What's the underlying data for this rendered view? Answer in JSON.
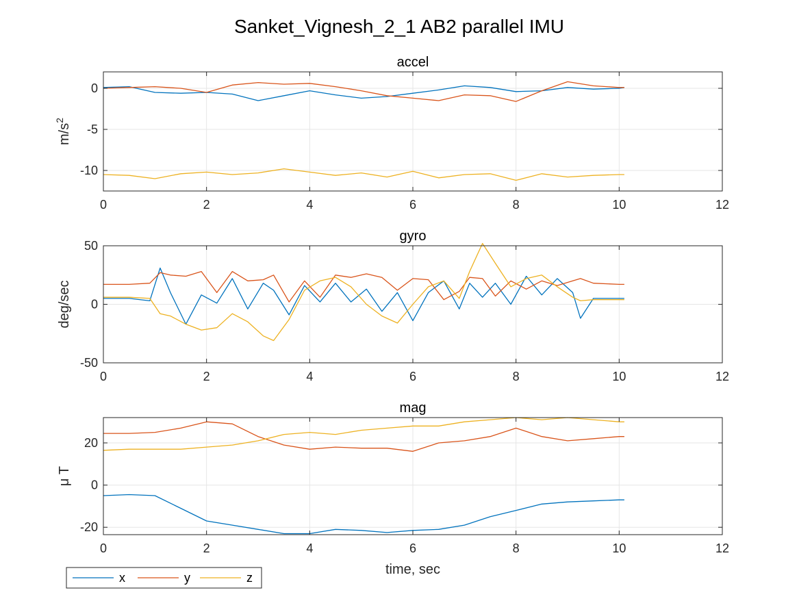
{
  "figure": {
    "suptitle": "Sanket_Vignesh_2_1 AB2 parallel IMU",
    "xlabel": "time, sec"
  },
  "legend": {
    "placement": "bottom-left",
    "entries": [
      {
        "label": "x",
        "color": "#0072BD"
      },
      {
        "label": "y",
        "color": "#D95319"
      },
      {
        "label": "z",
        "color": "#EDB120"
      }
    ]
  },
  "chart_data": [
    {
      "type": "line",
      "title": "accel",
      "ylabel": "m/s",
      "ylabel_sup": "2",
      "xlim": [
        0,
        12
      ],
      "ylim": [
        -12.5,
        2
      ],
      "xticks": [
        0,
        2,
        4,
        6,
        8,
        10,
        12
      ],
      "yticks": [
        -10,
        -5,
        0
      ],
      "grid": true,
      "x": [
        0,
        0.5,
        1,
        1.5,
        2,
        2.5,
        3,
        3.5,
        4,
        4.5,
        5,
        5.5,
        6,
        6.5,
        7,
        7.5,
        8,
        8.5,
        9,
        9.5,
        10,
        10.1
      ],
      "series": [
        {
          "name": "x",
          "color": "#0072BD",
          "values": [
            0.1,
            0.2,
            -0.5,
            -0.6,
            -0.5,
            -0.7,
            -1.5,
            -0.9,
            -0.3,
            -0.8,
            -1.2,
            -1.0,
            -0.6,
            -0.2,
            0.3,
            0.1,
            -0.4,
            -0.3,
            0.1,
            -0.1,
            0.0,
            0.1
          ]
        },
        {
          "name": "y",
          "color": "#D95319",
          "values": [
            0.0,
            0.1,
            0.2,
            0.0,
            -0.5,
            0.4,
            0.7,
            0.5,
            0.6,
            0.2,
            -0.3,
            -0.9,
            -1.2,
            -1.5,
            -0.8,
            -0.9,
            -1.6,
            -0.3,
            0.8,
            0.3,
            0.1,
            0.1
          ]
        },
        {
          "name": "z",
          "color": "#EDB120",
          "values": [
            -10.5,
            -10.6,
            -11.0,
            -10.4,
            -10.2,
            -10.5,
            -10.3,
            -9.8,
            -10.2,
            -10.6,
            -10.3,
            -10.8,
            -10.1,
            -10.9,
            -10.5,
            -10.4,
            -11.2,
            -10.4,
            -10.8,
            -10.6,
            -10.5,
            -10.5
          ]
        }
      ]
    },
    {
      "type": "line",
      "title": "gyro",
      "ylabel": "deg/sec",
      "xlim": [
        0,
        12
      ],
      "ylim": [
        -50,
        50
      ],
      "xticks": [
        0,
        2,
        4,
        6,
        8,
        10,
        12
      ],
      "yticks": [
        -50,
        0,
        50
      ],
      "grid": true,
      "x": [
        0,
        0.5,
        0.9,
        1.1,
        1.3,
        1.6,
        1.9,
        2.2,
        2.5,
        2.8,
        3.1,
        3.3,
        3.6,
        3.9,
        4.2,
        4.5,
        4.8,
        5.1,
        5.4,
        5.7,
        6.0,
        6.3,
        6.6,
        6.9,
        7.1,
        7.35,
        7.6,
        7.9,
        8.2,
        8.5,
        8.8,
        9.1,
        9.25,
        9.5,
        10,
        10.1
      ],
      "series": [
        {
          "name": "x",
          "color": "#0072BD",
          "values": [
            5,
            5,
            3,
            31,
            10,
            -17,
            8,
            1,
            22,
            -4,
            18,
            12,
            -9,
            16,
            2,
            18,
            2,
            13,
            -6,
            10,
            -14,
            10,
            20,
            -4,
            18,
            6,
            18,
            0,
            24,
            8,
            22,
            10,
            -12,
            5,
            5,
            5
          ]
        },
        {
          "name": "y",
          "color": "#D95319",
          "values": [
            17,
            17,
            18,
            27,
            25,
            24,
            28,
            10,
            28,
            20,
            21,
            25,
            2,
            20,
            6,
            25,
            23,
            26,
            23,
            12,
            22,
            21,
            4,
            11,
            23,
            22,
            7,
            20,
            13,
            20,
            16,
            20,
            22,
            18,
            17,
            17
          ]
        },
        {
          "name": "z",
          "color": "#EDB120",
          "values": [
            6,
            6,
            5,
            -8,
            -10,
            -17,
            -22,
            -20,
            -8,
            -15,
            -27,
            -31,
            -13,
            12,
            20,
            23,
            15,
            0,
            -10,
            -16,
            0,
            15,
            20,
            5,
            28,
            52,
            35,
            15,
            22,
            25,
            15,
            6,
            3,
            4,
            4,
            4
          ]
        }
      ]
    },
    {
      "type": "line",
      "title": "mag",
      "ylabel": "μ T",
      "xlim": [
        0,
        12
      ],
      "ylim": [
        -23.5,
        32
      ],
      "xticks": [
        0,
        2,
        4,
        6,
        8,
        10,
        12
      ],
      "yticks": [
        -20,
        0,
        20
      ],
      "grid": true,
      "x": [
        0,
        0.5,
        1,
        1.5,
        2,
        2.5,
        3,
        3.5,
        4,
        4.5,
        5,
        5.5,
        6,
        6.5,
        7,
        7.5,
        8,
        8.5,
        9,
        9.5,
        10,
        10.1
      ],
      "series": [
        {
          "name": "x",
          "color": "#0072BD",
          "values": [
            -5,
            -4.5,
            -5,
            -11,
            -17,
            -19,
            -21,
            -23,
            -23,
            -21,
            -21.5,
            -22.5,
            -21.5,
            -21,
            -19,
            -15,
            -12,
            -9,
            -8,
            -7.5,
            -7,
            -7
          ]
        },
        {
          "name": "y",
          "color": "#D95319",
          "values": [
            24.5,
            24.5,
            25,
            27,
            30,
            29,
            23,
            19,
            17,
            18,
            17.5,
            17.5,
            16,
            20,
            21,
            23,
            27,
            23,
            21,
            22,
            23,
            23
          ]
        },
        {
          "name": "z",
          "color": "#EDB120",
          "values": [
            16.5,
            17,
            17,
            17,
            18,
            19,
            21,
            24,
            25,
            24,
            26,
            27,
            28,
            28,
            30,
            31,
            32,
            31,
            32,
            31,
            30,
            30
          ]
        }
      ]
    }
  ]
}
